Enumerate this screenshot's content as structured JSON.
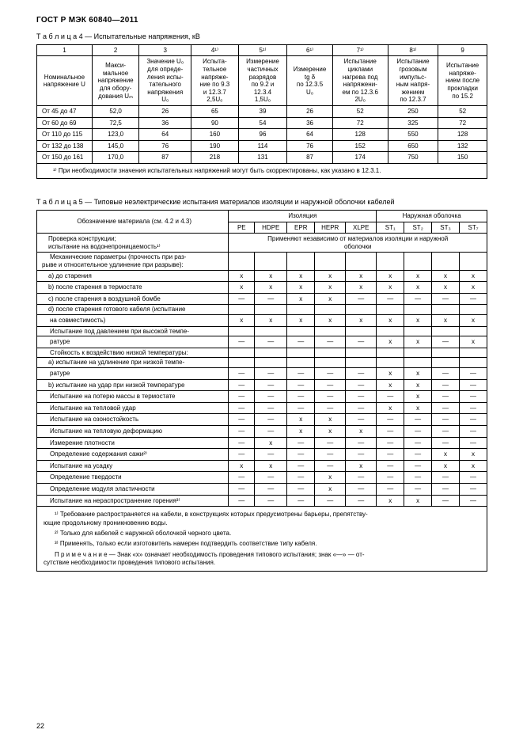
{
  "header": "ГОСТ Р МЭК 60840—2011",
  "t4": {
    "caption": "Т а б л и ц а  4 — Испытательные напряжения, кВ",
    "headnums": [
      "1",
      "2",
      "3",
      "4¹⁾",
      "5¹⁾",
      "6¹⁾",
      "7¹⁾",
      "8¹⁾",
      "9"
    ],
    "headers": [
      "Номинальное напряжение U",
      "Макси-\nмальное\nнапряжение\nдля обору-\nдования Uₘ",
      "Значение U₀\nдля опреде-\nления испы-\nтательного\nнапряжения\nU₀",
      "Испыта-\nтельное\nнапряже-\nние по 9.3\nи 12.3.7\n2,5U₀",
      "Измерение\nчастичных\nразрядов\nпо 9.2 и\n12.3.4\n1,5U₀",
      "Измерение\ntg δ\nпо 12.3.5\nU₀",
      "Испытание\nциклами\nнагрева под\nнапряжени-\nем по 12.3.6\n2U₀",
      "Испытание\nгрозовым\nимпульс-\nным напря-\nжением\nпо 12.3.7",
      "Испытание\nнапряже-\nнием после\nпрокладки\nпо 15.2"
    ],
    "rows": [
      [
        "От 45 до 47",
        "52,0",
        "26",
        "65",
        "39",
        "26",
        "52",
        "250",
        "52"
      ],
      [
        "От 60 до 69",
        "72,5",
        "36",
        "90",
        "54",
        "36",
        "72",
        "325",
        "72"
      ],
      [
        "От 110 до 115",
        "123,0",
        "64",
        "160",
        "96",
        "64",
        "128",
        "550",
        "128"
      ],
      [
        "От 132 до 138",
        "145,0",
        "76",
        "190",
        "114",
        "76",
        "152",
        "650",
        "132"
      ],
      [
        "От 150 до 161",
        "170,0",
        "87",
        "218",
        "131",
        "87",
        "174",
        "750",
        "150"
      ]
    ],
    "footnote": "¹⁾ При необходимости значения испытательных напряжений могут быть скорректированы, как указано в 12.3.1."
  },
  "t5": {
    "caption": "Т а б л и ц а  5 — Типовые неэлектрические испытания материалов изоляции и наружной оболочки кабелей",
    "groupHeaders": {
      "left": "Обозначение материала (см. 4.2 и 4.3)",
      "mid": "Изоляция",
      "right": "Наружная оболочка"
    },
    "cols": [
      "PE",
      "HDPE",
      "EPR",
      "HEPR",
      "XLPE",
      "ST₁",
      "ST₂",
      "ST₃",
      "ST₇"
    ],
    "sectionA": {
      "label": "Проверка конструкции;\nиспытание на водонепроницаемость¹⁾",
      "value": "Применяют независимо от материалов изоляции и наружной\nоболочки"
    },
    "rows": [
      {
        "t": "l",
        "label": "Механические параметры (прочность при раз-\nрыве и относительное удлинение при разрыве):",
        "m": [
          "",
          "",
          "",
          "",
          "",
          "",
          "",
          "",
          ""
        ]
      },
      {
        "t": "li",
        "label": "a) до старения",
        "m": [
          "x",
          "x",
          "x",
          "x",
          "x",
          "x",
          "x",
          "x",
          "x"
        ]
      },
      {
        "t": "li",
        "label": "b) после старения в термостате",
        "m": [
          "x",
          "x",
          "x",
          "x",
          "x",
          "x",
          "x",
          "x",
          "x"
        ]
      },
      {
        "t": "li",
        "label": "c) после старения в воздушной бомбе",
        "m": [
          "—",
          "—",
          "x",
          "x",
          "—",
          "—",
          "—",
          "—",
          "—"
        ]
      },
      {
        "t": "li",
        "label": "d) после старения готового кабеля (испытание",
        "m": [
          "",
          "",
          "",
          "",
          "",
          "",
          "",
          "",
          ""
        ]
      },
      {
        "t": "l",
        "label": "на совместимость)",
        "m": [
          "x",
          "x",
          "x",
          "x",
          "x",
          "x",
          "x",
          "x",
          "x"
        ]
      },
      {
        "t": "l",
        "label": "Испытание под давлением при высокой темпе-",
        "m": [
          "",
          "",
          "",
          "",
          "",
          "",
          "",
          "",
          ""
        ]
      },
      {
        "t": "l",
        "label": "ратуре",
        "m": [
          "—",
          "—",
          "—",
          "—",
          "—",
          "x",
          "x",
          "—",
          "x"
        ]
      },
      {
        "t": "l",
        "label": "Стойкость к воздействию низкой температуры:",
        "m": [
          "",
          "",
          "",
          "",
          "",
          "",
          "",
          "",
          ""
        ]
      },
      {
        "t": "li",
        "label": "a) испытание на удлинение при низкой темпе-",
        "m": [
          "",
          "",
          "",
          "",
          "",
          "",
          "",
          "",
          ""
        ]
      },
      {
        "t": "l",
        "label": "ратуре",
        "m": [
          "—",
          "—",
          "—",
          "—",
          "—",
          "x",
          "x",
          "—",
          "—"
        ]
      },
      {
        "t": "li",
        "label": "b) испытание на удар при низкой температуре",
        "m": [
          "—",
          "—",
          "—",
          "—",
          "—",
          "x",
          "x",
          "—",
          "—"
        ]
      },
      {
        "t": "l",
        "label": "Испытание на потерю массы в термостате",
        "m": [
          "—",
          "—",
          "—",
          "—",
          "—",
          "—",
          "x",
          "—",
          "—"
        ]
      },
      {
        "t": "l",
        "label": "Испытание на тепловой удар",
        "m": [
          "—",
          "—",
          "—",
          "—",
          "—",
          "x",
          "x",
          "—",
          "—"
        ]
      },
      {
        "t": "l",
        "label": "Испытание на озоностойкость",
        "m": [
          "—",
          "—",
          "x",
          "x",
          "—",
          "—",
          "—",
          "—",
          "—"
        ]
      },
      {
        "t": "l",
        "label": "Испытание на тепловую деформацию",
        "m": [
          "—",
          "—",
          "x",
          "x",
          "x",
          "—",
          "—",
          "—",
          "—"
        ]
      },
      {
        "t": "l",
        "label": "Измерение плотности",
        "m": [
          "—",
          "x",
          "—",
          "—",
          "—",
          "—",
          "—",
          "—",
          "—"
        ]
      },
      {
        "t": "l",
        "label": "Определение содержания сажи²⁾",
        "m": [
          "—",
          "—",
          "—",
          "—",
          "—",
          "—",
          "—",
          "x",
          "x"
        ]
      },
      {
        "t": "l",
        "label": "Испытание на усадку",
        "m": [
          "x",
          "x",
          "—",
          "—",
          "x",
          "—",
          "—",
          "x",
          "x"
        ]
      },
      {
        "t": "l",
        "label": "Определение твердости",
        "m": [
          "—",
          "—",
          "—",
          "x",
          "—",
          "—",
          "—",
          "—",
          "—"
        ]
      },
      {
        "t": "l",
        "label": "Определение модуля эластичности",
        "m": [
          "—",
          "—",
          "—",
          "x",
          "—",
          "—",
          "—",
          "—",
          "—"
        ]
      },
      {
        "t": "l",
        "label": "Испытание на нераспространение горения³⁾",
        "m": [
          "—",
          "—",
          "—",
          "—",
          "—",
          "x",
          "x",
          "—",
          "—"
        ]
      }
    ],
    "footnotes": [
      "¹⁾ Требование распространяется на кабели, в конструкциях которых предусмотрены барьеры, препятству-\nющие продольному проникновению воды.",
      "²⁾ Только для кабелей с наружной оболочкой черного цвета.",
      "³⁾ Применять, только если изготовитель намерен подтвердить соответствие типу кабеля.",
      "П р и м е ч а н и е — Знак «x» означает необходимость проведения типового испытания; знак «—» — от-\nсутствие необходимости проведения типового испытания."
    ]
  },
  "pageNumber": "22"
}
